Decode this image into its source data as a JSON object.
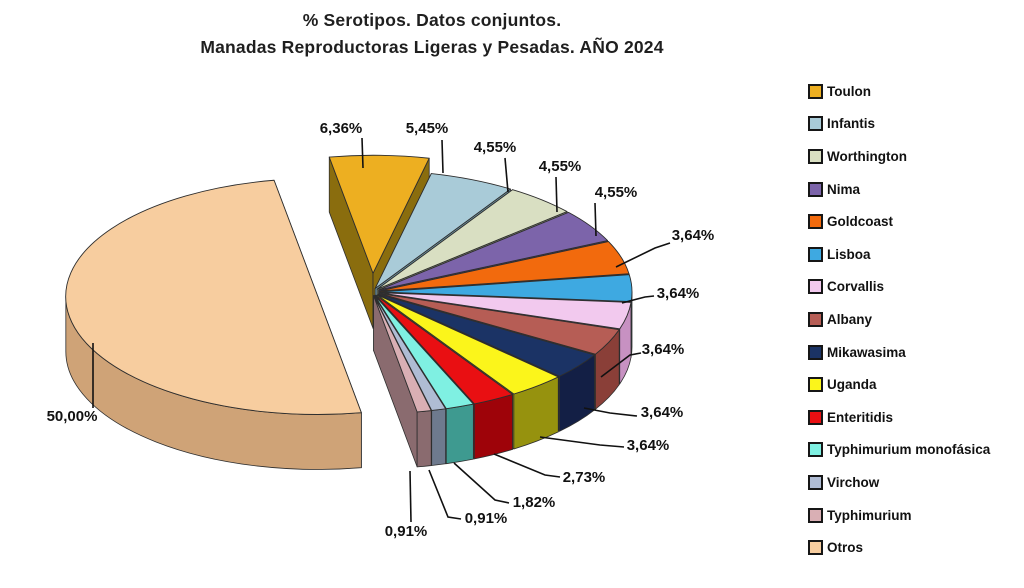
{
  "title": {
    "line1": "% Serotipos. Datos conjuntos.",
    "line2": "Manadas Reproductoras Ligeras y Pesadas. AÑO 2024"
  },
  "chart_data": {
    "type": "pie",
    "style": "3d-exploded-pie",
    "title": "% Serotipos. Datos conjuntos. Manadas Reproductoras Ligeras y Pesadas. AÑO 2024",
    "unit": "%",
    "value_format": "comma-decimal-percent",
    "legend_position": "right",
    "series": [
      {
        "name": "Toulon",
        "value": 6.36,
        "label": "6,36%",
        "color": "#EDAF21",
        "side_color": "#8A6D0E"
      },
      {
        "name": "Infantis",
        "value": 5.45,
        "label": "5,45%",
        "color": "#A9CBD8",
        "side_color": "#6E97A6"
      },
      {
        "name": "Worthington",
        "value": 4.55,
        "label": "4,55%",
        "color": "#D9DFC2",
        "side_color": "#99A283"
      },
      {
        "name": "Nima",
        "value": 4.55,
        "label": "4,55%",
        "color": "#7C64AA",
        "side_color": "#55437A"
      },
      {
        "name": "Goldcoast",
        "value": 4.55,
        "label": "4,55%",
        "color": "#F26A0D",
        "side_color": "#A84708"
      },
      {
        "name": "Lisboa",
        "value": 3.64,
        "label": "3,64%",
        "color": "#3EA9E1",
        "side_color": "#2A74A0"
      },
      {
        "name": "Corvallis",
        "value": 3.64,
        "label": "3,64%",
        "color": "#F2C9EE",
        "side_color": "#C791C2"
      },
      {
        "name": "Albany",
        "value": 3.64,
        "label": "3,64%",
        "color": "#B65D55",
        "side_color": "#8A3F38"
      },
      {
        "name": "Mikawasima",
        "value": 3.64,
        "label": "3,64%",
        "color": "#1B3365",
        "side_color": "#131F45"
      },
      {
        "name": "Uganda",
        "value": 3.64,
        "label": "3,64%",
        "color": "#FBF51B",
        "side_color": "#96920E"
      },
      {
        "name": "Enteritidis",
        "value": 2.73,
        "label": "2,73%",
        "color": "#E90F12",
        "side_color": "#9E0309"
      },
      {
        "name": "Typhimurium monofásica",
        "value": 1.82,
        "label": "1,82%",
        "color": "#7FF0E2",
        "side_color": "#3E9A90"
      },
      {
        "name": "Virchow",
        "value": 0.91,
        "label": "0,91%",
        "color": "#AFBCD4",
        "side_color": "#6E7A8E"
      },
      {
        "name": "Typhimurium",
        "value": 0.91,
        "label": "0,91%",
        "color": "#D9AFB4",
        "side_color": "#8A6B6F"
      },
      {
        "name": "Otros",
        "value": 50.0,
        "label": "50,00%",
        "color": "#F7CD9F",
        "side_color": "#CFA377"
      }
    ]
  }
}
